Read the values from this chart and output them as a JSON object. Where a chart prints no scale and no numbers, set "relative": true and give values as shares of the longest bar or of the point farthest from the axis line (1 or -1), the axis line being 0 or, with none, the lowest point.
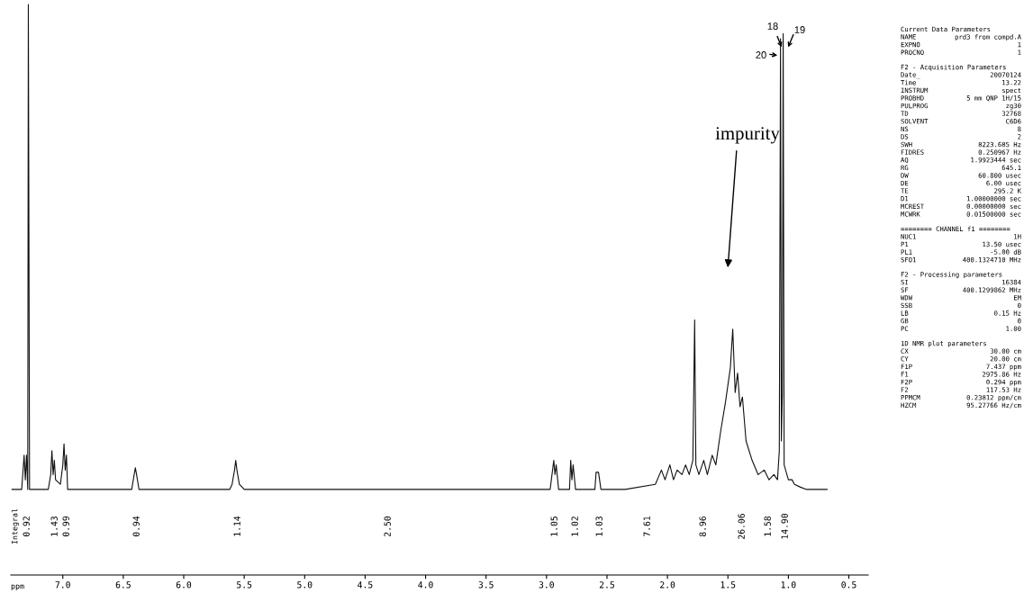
{
  "chart_data": {
    "type": "line",
    "relative": true,
    "xlabel": "ppm",
    "xlim": [
      7.43,
      0.34
    ],
    "xticks": [
      {
        "value": 7,
        "label": "7.0"
      },
      6.5,
      {
        "value": 6,
        "label": "6.0"
      },
      5.5,
      {
        "value": 5,
        "label": "5.0"
      },
      4.5,
      {
        "value": 4,
        "label": "4.0"
      },
      3.5,
      {
        "value": 3,
        "label": "3.0"
      },
      2.5,
      {
        "value": 2,
        "label": "2.0"
      },
      1.5,
      {
        "value": 1,
        "label": "1.0"
      },
      0.5
    ],
    "marker": "none",
    "line_style": "solid",
    "series": [
      {
        "color": "#111111",
        "x": [
          7.42,
          7.34,
          7.32,
          7.31,
          7.3,
          7.29,
          7.285,
          7.275,
          7.25,
          7.12,
          7.1,
          7.09,
          7.08,
          7.07,
          7.06,
          7.02,
          7.0,
          6.99,
          6.98,
          6.97,
          6.96,
          6.8,
          6.43,
          6.41,
          6.4,
          6.39,
          6.37,
          5.62,
          5.6,
          5.58,
          5.57,
          5.56,
          5.54,
          5.5,
          4.5,
          3.0,
          2.97,
          2.95,
          2.94,
          2.93,
          2.92,
          2.9,
          2.81,
          2.8,
          2.79,
          2.78,
          2.76,
          2.6,
          2.59,
          2.57,
          2.55,
          2.45,
          2.35,
          2.1,
          2.05,
          2.02,
          1.98,
          1.95,
          1.92,
          1.88,
          1.85,
          1.82,
          1.79,
          1.775,
          1.765,
          1.74,
          1.7,
          1.67,
          1.63,
          1.6,
          1.56,
          1.52,
          1.48,
          1.46,
          1.44,
          1.42,
          1.4,
          1.38,
          1.35,
          1.3,
          1.25,
          1.2,
          1.16,
          1.12,
          1.09,
          1.075,
          1.065,
          1.058,
          1.05,
          1.043,
          1.035,
          1.0,
          0.97,
          0.95,
          0.9,
          0.85,
          0.68
        ],
        "values": [
          0.15,
          0.15,
          0.21,
          0.167,
          0.21,
          0.15,
          1.0,
          0.15,
          0.15,
          0.15,
          0.176,
          0.218,
          0.176,
          0.201,
          0.167,
          0.159,
          0.193,
          0.23,
          0.184,
          0.21,
          0.15,
          0.15,
          0.15,
          0.176,
          0.188,
          0.176,
          0.15,
          0.15,
          0.159,
          0.184,
          0.201,
          0.184,
          0.159,
          0.15,
          0.15,
          0.15,
          0.15,
          0.184,
          0.201,
          0.176,
          0.193,
          0.15,
          0.15,
          0.201,
          0.167,
          0.193,
          0.15,
          0.15,
          0.18,
          0.18,
          0.15,
          0.15,
          0.15,
          0.159,
          0.184,
          0.167,
          0.193,
          0.167,
          0.184,
          0.176,
          0.193,
          0.176,
          0.201,
          0.447,
          0.193,
          0.176,
          0.201,
          0.176,
          0.21,
          0.193,
          0.252,
          0.303,
          0.363,
          0.431,
          0.32,
          0.354,
          0.295,
          0.312,
          0.235,
          0.201,
          0.176,
          0.184,
          0.167,
          0.176,
          0.167,
          0.218,
          0.94,
          0.235,
          0.32,
          0.949,
          0.193,
          0.167,
          0.167,
          0.159,
          0.154,
          0.15,
          0.15
        ]
      }
    ],
    "annotations": [
      "Integral",
      "0.92",
      "1.43",
      "0.99",
      "0.94",
      "1.14",
      "2.50",
      "1.05",
      "1.02",
      "1.03",
      "7.61",
      "8.96",
      "26.06",
      "1.58",
      "14.90",
      "impurity",
      "18",
      "19",
      "20",
      "Current Data Parameters",
      "NAME  prd3 from compd.A",
      "EXPNO  1",
      "PROCNO  1",
      "F2 - Acquisition Parameters",
      "Date_  20070124",
      "Time  13.22",
      "INSTRUM  spect",
      "PROBHD  5 mm QNP 1H/15",
      "PULPROG  zg30",
      "TD  32768",
      "SOLVENT  C6D6",
      "NS  8",
      "DS  2",
      "SWH  8223.685 Hz",
      "FIDRES  0.250967 Hz",
      "AQ  1.9923444 sec",
      "RG  645.1",
      "DW  60.800 usec",
      "DE  6.00 usec",
      "TE  295.2 K",
      "D1  1.00000000 sec",
      "MCREST  0.00000000 sec",
      "MCWRK  0.01500000 sec",
      "======== CHANNEL f1 ========",
      "NUC1  1H",
      "P1  13.50 usec",
      "PL1  -5.00 dB",
      "SFO1  400.1324710 MHz",
      "F2 - Processing parameters",
      "SI  16384",
      "SF  400.1299862 MHz",
      "WDW  EM",
      "SSB  0",
      "LB  0.15 Hz",
      "GB  0",
      "PC  1.00",
      "1D NMR plot parameters",
      "CX  30.00 cm",
      "CY  20.00 cm",
      "F1P  7.437 ppm",
      "F1  2975.86 Hz",
      "F2P  0.294 ppm",
      "F2  117.53 Hz",
      "PPMCM  0.23812 ppm/cm",
      "HZCM  95.27766 Hz/cm"
    ]
  }
}
